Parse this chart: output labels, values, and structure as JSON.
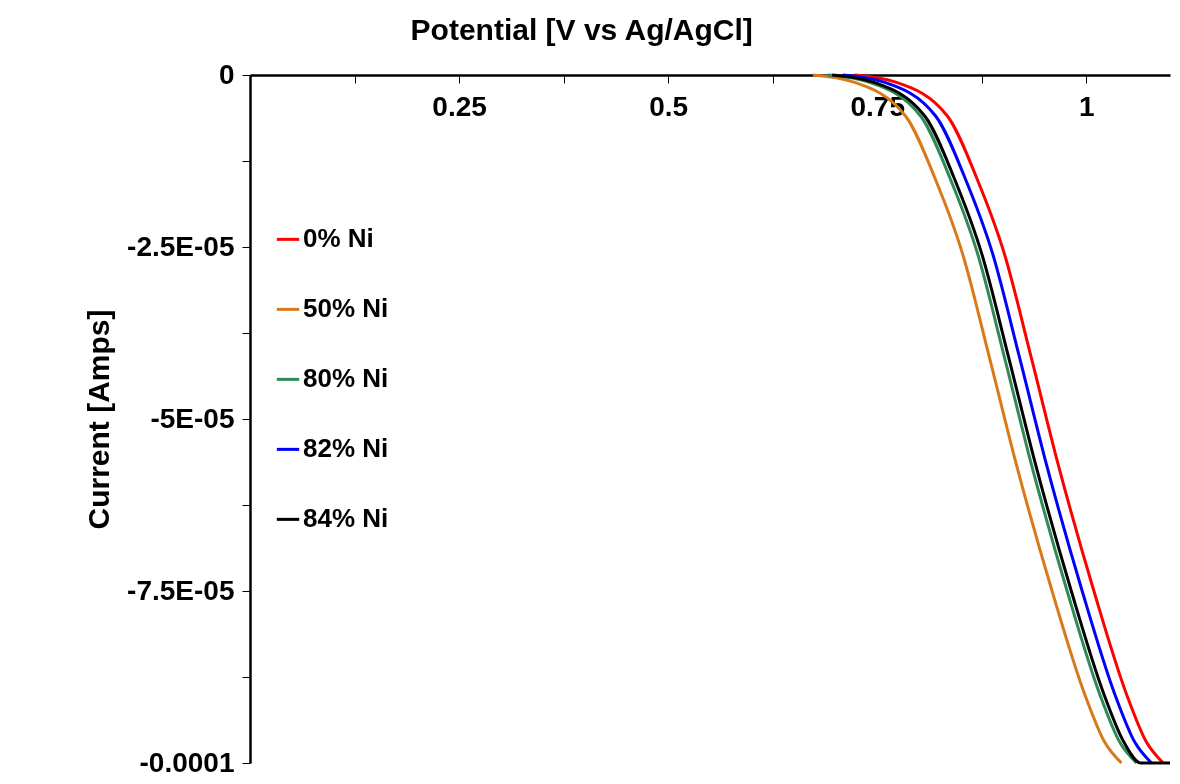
{
  "chart_data": {
    "type": "line",
    "xlabel": "Potential [V vs Ag/AgCl]",
    "ylabel": "Current [Amps]",
    "xlim": [
      0,
      1.1
    ],
    "ylim": [
      -0.0001,
      0
    ],
    "xticks": [
      {
        "value": 0.125,
        "label": null
      },
      0.25,
      {
        "value": 0.375,
        "label": null
      },
      0.5,
      {
        "value": 0.625,
        "label": null
      },
      0.75,
      {
        "value": 0.875,
        "label": null
      },
      1
    ],
    "yticks": [
      0,
      {
        "value": -1.25e-05,
        "label": null
      },
      {
        "value": -2.5e-05,
        "label": "-2.5E-05"
      },
      {
        "value": -3.75e-05,
        "label": null
      },
      {
        "value": -5e-05,
        "label": "-5E-05"
      },
      {
        "value": -6.25e-05,
        "label": null
      },
      {
        "value": -7.5e-05,
        "label": "-7.5E-05"
      },
      {
        "value": -8.75e-05,
        "label": null
      },
      {
        "value": -0.0001,
        "label": "-0.0001"
      }
    ],
    "grid": false,
    "legend": "left",
    "marker": "none",
    "line_style": "solid",
    "series": [
      {
        "name": "0%  Ni",
        "color": "#ff0000",
        "x": [
          0.723,
          0.771,
          0.834,
          0.869,
          0.902,
          0.934,
          0.965,
          1.009,
          1.048,
          1.072,
          1.092
        ],
        "values": [
          0,
          -1e-06,
          -6e-06,
          -1.5e-05,
          -2.6e-05,
          -4.1e-05,
          -5.6e-05,
          -7.5e-05,
          -9e-05,
          -9.7e-05,
          -0.0001
        ]
      },
      {
        "name": "50% Ni",
        "color": "#d97a1a",
        "x": [
          0.673,
          0.721,
          0.784,
          0.819,
          0.852,
          0.884,
          0.915,
          0.959,
          0.998,
          1.022,
          1.042
        ],
        "values": [
          0,
          -1e-06,
          -6e-06,
          -1.5e-05,
          -2.6e-05,
          -4.1e-05,
          -5.6e-05,
          -7.5e-05,
          -9e-05,
          -9.7e-05,
          -0.0001
        ]
      },
      {
        "name": "80% Ni",
        "color": "#2e8b57",
        "x": [
          0.691,
          0.739,
          0.802,
          0.837,
          0.87,
          0.902,
          0.933,
          0.977,
          1.016,
          1.04,
          1.06
        ],
        "values": [
          0,
          -1e-06,
          -6e-06,
          -1.5e-05,
          -2.6e-05,
          -4.1e-05,
          -5.6e-05,
          -7.5e-05,
          -9e-05,
          -9.7e-05,
          -0.0001
        ]
      },
      {
        "name": "82% Ni",
        "color": "#0000ff",
        "x": [
          0.709,
          0.757,
          0.82,
          0.855,
          0.888,
          0.92,
          0.951,
          0.995,
          1.034,
          1.058,
          1.078
        ],
        "values": [
          0,
          -1e-06,
          -6e-06,
          -1.5e-05,
          -2.6e-05,
          -4.1e-05,
          -5.6e-05,
          -7.5e-05,
          -9e-05,
          -9.7e-05,
          -0.0001
        ]
      },
      {
        "name": "84% Ni",
        "color": "#000000",
        "x": [
          0.696,
          0.744,
          0.807,
          0.842,
          0.875,
          0.907,
          0.938,
          0.982,
          1.021,
          1.045,
          1.065,
          1.1
        ],
        "values": [
          0,
          -1e-06,
          -6e-06,
          -1.5e-05,
          -2.6e-05,
          -4.1e-05,
          -5.6e-05,
          -7.5e-05,
          -9e-05,
          -9.7e-05,
          -0.0001,
          -0.0001
        ]
      }
    ]
  }
}
